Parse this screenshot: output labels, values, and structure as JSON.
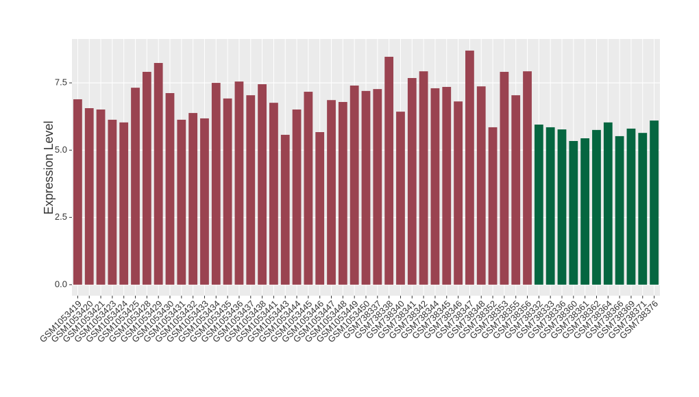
{
  "chart_data": {
    "type": "bar",
    "y_label": "Expression Level",
    "categories": [
      "GSM1053419",
      "GSM1053420",
      "GSM1053421",
      "GSM1053423",
      "GSM1053424",
      "GSM1053425",
      "GSM1053428",
      "GSM1053429",
      "GSM1053430",
      "GSM1053431",
      "GSM1053432",
      "GSM1053433",
      "GSM1053434",
      "GSM1053435",
      "GSM1053436",
      "GSM1053437",
      "GSM1053438",
      "GSM1053441",
      "GSM1053443",
      "GSM1053444",
      "GSM1053445",
      "GSM1053446",
      "GSM1053447",
      "GSM1053448",
      "GSM1053449",
      "GSM1053450",
      "GSM738337",
      "GSM738338",
      "GSM738340",
      "GSM738341",
      "GSM738342",
      "GSM738344",
      "GSM738345",
      "GSM738346",
      "GSM738347",
      "GSM738348",
      "GSM738352",
      "GSM738353",
      "GSM738355",
      "GSM738356",
      "GSM738332",
      "GSM738333",
      "GSM738336",
      "GSM738360",
      "GSM738361",
      "GSM738362",
      "GSM738364",
      "GSM738366",
      "GSM738369",
      "GSM738371",
      "GSM738376"
    ],
    "values": [
      6.89,
      6.56,
      6.51,
      6.13,
      6.03,
      7.32,
      7.91,
      8.24,
      7.12,
      6.13,
      6.38,
      6.18,
      7.5,
      6.92,
      7.55,
      7.04,
      7.45,
      6.76,
      5.57,
      6.51,
      7.17,
      5.67,
      6.86,
      6.79,
      7.4,
      7.2,
      7.27,
      8.47,
      6.43,
      7.68,
      7.93,
      7.3,
      7.35,
      6.81,
      8.7,
      7.37,
      5.85,
      7.91,
      7.04,
      7.93,
      5.95,
      5.85,
      5.77,
      5.34,
      5.44,
      5.75,
      6.03,
      5.52,
      5.8,
      5.64,
      6.1
    ],
    "colors": [
      "#9a4350",
      "#9a4350",
      "#9a4350",
      "#9a4350",
      "#9a4350",
      "#9a4350",
      "#9a4350",
      "#9a4350",
      "#9a4350",
      "#9a4350",
      "#9a4350",
      "#9a4350",
      "#9a4350",
      "#9a4350",
      "#9a4350",
      "#9a4350",
      "#9a4350",
      "#9a4350",
      "#9a4350",
      "#9a4350",
      "#9a4350",
      "#9a4350",
      "#9a4350",
      "#9a4350",
      "#9a4350",
      "#9a4350",
      "#9a4350",
      "#9a4350",
      "#9a4350",
      "#9a4350",
      "#9a4350",
      "#9a4350",
      "#9a4350",
      "#9a4350",
      "#9a4350",
      "#9a4350",
      "#9a4350",
      "#9a4350",
      "#9a4350",
      "#9a4350",
      "#056640",
      "#056640",
      "#056640",
      "#056640",
      "#056640",
      "#056640",
      "#056640",
      "#056640",
      "#056640",
      "#056640",
      "#056640"
    ],
    "ylim": [
      -0.41,
      9.13
    ],
    "yticks": [
      {
        "value": 0,
        "label": "0.0"
      },
      {
        "value": 2.5,
        "label": "2.5"
      },
      {
        "value": 5,
        "label": "5.0"
      },
      {
        "value": 7.5,
        "label": "7.5"
      }
    ],
    "grid": true
  }
}
